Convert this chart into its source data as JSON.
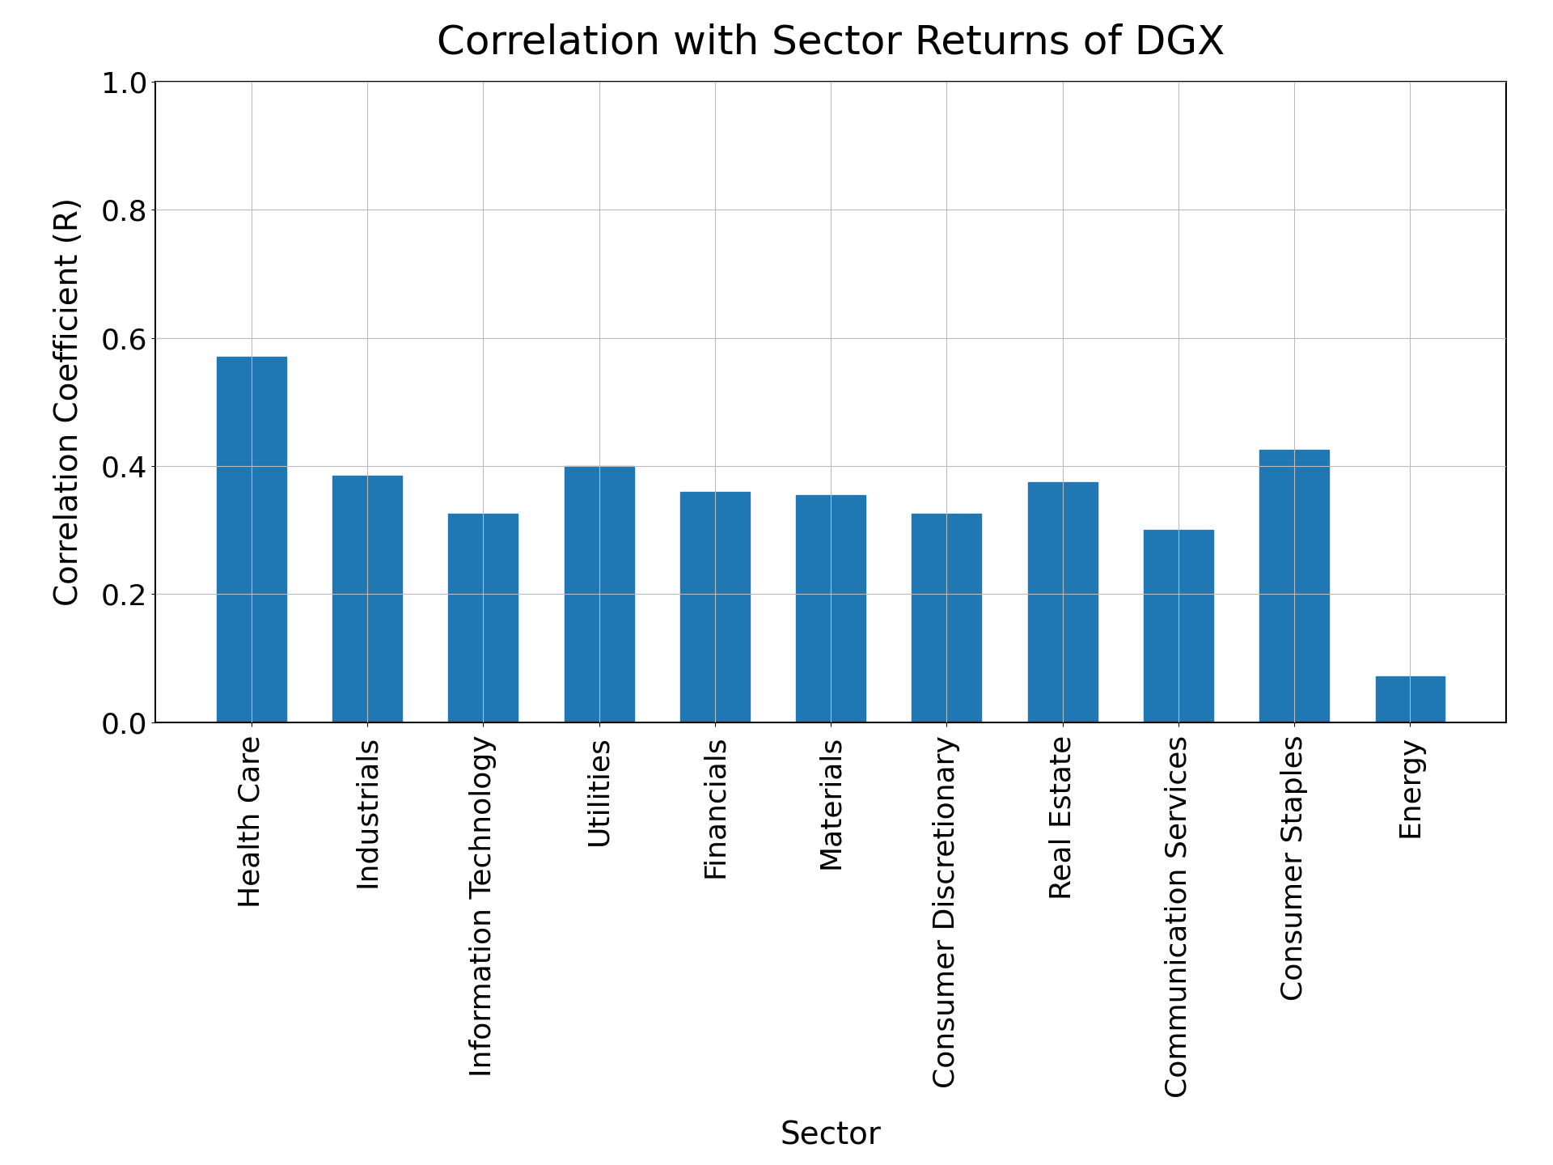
{
  "title": "Correlation with Sector Returns of DGX",
  "xlabel": "Sector",
  "ylabel": "Correlation Coefficient (R)",
  "categories": [
    "Health Care",
    "Industrials",
    "Information Technology",
    "Utilities",
    "Financials",
    "Materials",
    "Consumer Discretionary",
    "Real Estate",
    "Communication Services",
    "Consumer Staples",
    "Energy"
  ],
  "values": [
    0.57,
    0.385,
    0.325,
    0.4,
    0.36,
    0.355,
    0.325,
    0.375,
    0.3,
    0.425,
    0.072
  ],
  "bar_color": "#1f77b4",
  "ylim": [
    0.0,
    1.0
  ],
  "yticks": [
    0.0,
    0.2,
    0.4,
    0.6,
    0.8,
    1.0
  ],
  "title_fontsize": 36,
  "label_fontsize": 28,
  "tick_fontsize": 26,
  "background_color": "#ffffff",
  "grid_color": "#bbbbbb",
  "bar_width": 0.6
}
